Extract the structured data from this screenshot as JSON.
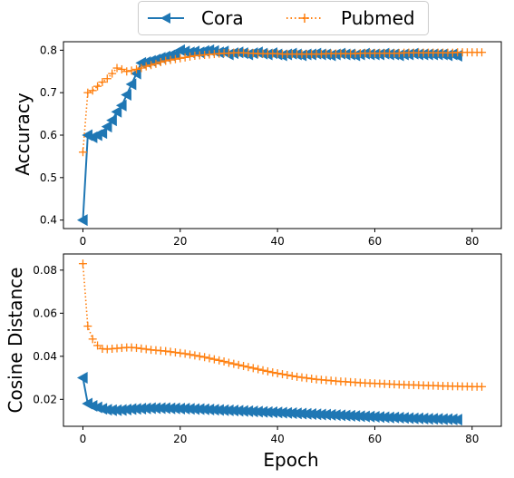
{
  "colors": {
    "cora": "#1f77b4",
    "pubmed": "#ff7f0e",
    "axis": "#000000",
    "legend_border": "#cccccc"
  },
  "legend": {
    "placement": "top-center",
    "items": [
      {
        "name": "Cora",
        "marker": "left-triangle",
        "line": "solid"
      },
      {
        "name": "Pubmed",
        "marker": "plus",
        "line": "dotted"
      }
    ]
  },
  "chart_data": [
    {
      "type": "line",
      "title": "",
      "xlabel": "",
      "ylabel": "Accuracy",
      "xlim": [
        -4,
        86
      ],
      "ylim": [
        0.38,
        0.82
      ],
      "xticks": [
        0,
        20,
        40,
        60,
        80
      ],
      "xtick_labels": [
        "0",
        "20",
        "40",
        "60",
        "80"
      ],
      "yticks": [
        0.4,
        0.5,
        0.6,
        0.7,
        0.8
      ],
      "ytick_labels": [
        "0.4",
        "0.5",
        "0.6",
        "0.7",
        "0.8"
      ],
      "grid": false,
      "series": [
        {
          "name": "Cora",
          "x": [
            0,
            1,
            2,
            3,
            4,
            5,
            6,
            7,
            8,
            9,
            10,
            11,
            12,
            13,
            14,
            15,
            16,
            17,
            18,
            19,
            20,
            21,
            22,
            23,
            24,
            25,
            26,
            27,
            28,
            29,
            30,
            31,
            32,
            33,
            34,
            35,
            36,
            37,
            38,
            39,
            40,
            41,
            42,
            43,
            44,
            45,
            46,
            47,
            48,
            49,
            50,
            51,
            52,
            53,
            54,
            55,
            56,
            57,
            58,
            59,
            60,
            61,
            62,
            63,
            64,
            65,
            66,
            67,
            68,
            69,
            70,
            71,
            72,
            73,
            74,
            75,
            76,
            77
          ],
          "y": [
            0.4,
            0.6,
            0.595,
            0.6,
            0.605,
            0.62,
            0.635,
            0.655,
            0.67,
            0.695,
            0.72,
            0.745,
            0.77,
            0.772,
            0.775,
            0.778,
            0.782,
            0.785,
            0.788,
            0.79,
            0.8,
            0.797,
            0.795,
            0.797,
            0.795,
            0.798,
            0.8,
            0.798,
            0.795,
            0.797,
            0.79,
            0.793,
            0.795,
            0.793,
            0.79,
            0.793,
            0.795,
            0.792,
            0.79,
            0.793,
            0.79,
            0.788,
            0.79,
            0.792,
            0.79,
            0.788,
            0.79,
            0.79,
            0.792,
            0.79,
            0.79,
            0.788,
            0.79,
            0.792,
            0.79,
            0.79,
            0.788,
            0.79,
            0.792,
            0.79,
            0.79,
            0.79,
            0.792,
            0.79,
            0.79,
            0.788,
            0.79,
            0.79,
            0.792,
            0.79,
            0.79,
            0.79,
            0.79,
            0.79,
            0.79,
            0.788,
            0.79,
            0.787
          ]
        },
        {
          "name": "Pubmed",
          "x": [
            0,
            1,
            2,
            3,
            4,
            5,
            6,
            7,
            8,
            9,
            10,
            11,
            12,
            13,
            14,
            15,
            16,
            17,
            18,
            19,
            20,
            21,
            22,
            23,
            24,
            25,
            26,
            27,
            28,
            29,
            30,
            31,
            32,
            33,
            34,
            35,
            36,
            37,
            38,
            39,
            40,
            41,
            42,
            43,
            44,
            45,
            46,
            47,
            48,
            49,
            50,
            51,
            52,
            53,
            54,
            55,
            56,
            57,
            58,
            59,
            60,
            61,
            62,
            63,
            64,
            65,
            66,
            67,
            68,
            69,
            70,
            71,
            72,
            73,
            74,
            75,
            76,
            77,
            78,
            79,
            80,
            81,
            82
          ],
          "y": [
            0.56,
            0.7,
            0.705,
            0.715,
            0.725,
            0.733,
            0.745,
            0.758,
            0.755,
            0.75,
            0.752,
            0.755,
            0.758,
            0.762,
            0.765,
            0.768,
            0.772,
            0.775,
            0.777,
            0.779,
            0.781,
            0.783,
            0.785,
            0.787,
            0.788,
            0.789,
            0.79,
            0.791,
            0.792,
            0.793,
            0.793,
            0.794,
            0.794,
            0.794,
            0.793,
            0.793,
            0.792,
            0.792,
            0.792,
            0.792,
            0.792,
            0.791,
            0.791,
            0.791,
            0.791,
            0.791,
            0.791,
            0.791,
            0.791,
            0.791,
            0.792,
            0.792,
            0.792,
            0.792,
            0.792,
            0.792,
            0.792,
            0.793,
            0.793,
            0.793,
            0.793,
            0.793,
            0.793,
            0.793,
            0.793,
            0.793,
            0.794,
            0.794,
            0.794,
            0.794,
            0.794,
            0.794,
            0.794,
            0.794,
            0.794,
            0.794,
            0.794,
            0.795,
            0.795,
            0.795,
            0.795,
            0.795,
            0.795
          ]
        }
      ]
    },
    {
      "type": "line",
      "title": "",
      "xlabel": "Epoch",
      "ylabel": "Cosine Distance",
      "xlim": [
        -4,
        86
      ],
      "ylim": [
        0.0075,
        0.0875
      ],
      "xticks": [
        0,
        20,
        40,
        60,
        80
      ],
      "xtick_labels": [
        "0",
        "20",
        "40",
        "60",
        "80"
      ],
      "yticks": [
        0.02,
        0.04,
        0.06,
        0.08
      ],
      "ytick_labels": [
        "0.02",
        "0.04",
        "0.06",
        "0.08"
      ],
      "grid": false,
      "series": [
        {
          "name": "Cora",
          "x": [
            0,
            1,
            2,
            3,
            4,
            5,
            6,
            7,
            8,
            9,
            10,
            11,
            12,
            13,
            14,
            15,
            16,
            17,
            18,
            19,
            20,
            21,
            22,
            23,
            24,
            25,
            26,
            27,
            28,
            29,
            30,
            31,
            32,
            33,
            34,
            35,
            36,
            37,
            38,
            39,
            40,
            41,
            42,
            43,
            44,
            45,
            46,
            47,
            48,
            49,
            50,
            51,
            52,
            53,
            54,
            55,
            56,
            57,
            58,
            59,
            60,
            61,
            62,
            63,
            64,
            65,
            66,
            67,
            68,
            69,
            70,
            71,
            72,
            73,
            74,
            75,
            76,
            77
          ],
          "y": [
            0.03,
            0.018,
            0.017,
            0.0163,
            0.0156,
            0.0152,
            0.015,
            0.015,
            0.0151,
            0.0153,
            0.0155,
            0.0156,
            0.0157,
            0.0158,
            0.0159,
            0.0159,
            0.0159,
            0.0159,
            0.0158,
            0.0158,
            0.0157,
            0.0157,
            0.0156,
            0.0155,
            0.0155,
            0.0154,
            0.0153,
            0.0152,
            0.0151,
            0.015,
            0.0149,
            0.0148,
            0.0147,
            0.0146,
            0.0145,
            0.0144,
            0.0143,
            0.0142,
            0.0141,
            0.014,
            0.0139,
            0.0138,
            0.0137,
            0.0136,
            0.0135,
            0.0134,
            0.0133,
            0.0132,
            0.0131,
            0.013,
            0.0129,
            0.0128,
            0.0127,
            0.0126,
            0.0125,
            0.0124,
            0.0123,
            0.0122,
            0.0121,
            0.012,
            0.0119,
            0.0118,
            0.0117,
            0.0116,
            0.0116,
            0.0115,
            0.0114,
            0.0113,
            0.0112,
            0.0112,
            0.0111,
            0.011,
            0.011,
            0.0109,
            0.0108,
            0.0108,
            0.0107,
            0.0106
          ]
        },
        {
          "name": "Pubmed",
          "x": [
            0,
            1,
            2,
            3,
            4,
            5,
            6,
            7,
            8,
            9,
            10,
            11,
            12,
            13,
            14,
            15,
            16,
            17,
            18,
            19,
            20,
            21,
            22,
            23,
            24,
            25,
            26,
            27,
            28,
            29,
            30,
            31,
            32,
            33,
            34,
            35,
            36,
            37,
            38,
            39,
            40,
            41,
            42,
            43,
            44,
            45,
            46,
            47,
            48,
            49,
            50,
            51,
            52,
            53,
            54,
            55,
            56,
            57,
            58,
            59,
            60,
            61,
            62,
            63,
            64,
            65,
            66,
            67,
            68,
            69,
            70,
            71,
            72,
            73,
            74,
            75,
            76,
            77,
            78,
            79,
            80,
            81,
            82
          ],
          "y": [
            0.083,
            0.054,
            0.048,
            0.045,
            0.0435,
            0.0433,
            0.0435,
            0.0437,
            0.0439,
            0.0441,
            0.0441,
            0.0439,
            0.0436,
            0.0433,
            0.043,
            0.0428,
            0.0426,
            0.0424,
            0.0421,
            0.0418,
            0.0415,
            0.0412,
            0.0408,
            0.0404,
            0.04,
            0.0396,
            0.0391,
            0.0386,
            0.0381,
            0.0376,
            0.037,
            0.0365,
            0.036,
            0.0355,
            0.035,
            0.0345,
            0.034,
            0.0335,
            0.033,
            0.0325,
            0.0321,
            0.0317,
            0.0313,
            0.0309,
            0.0305,
            0.0302,
            0.0299,
            0.0296,
            0.0293,
            0.0291,
            0.0289,
            0.0287,
            0.0285,
            0.0283,
            0.0282,
            0.028,
            0.0279,
            0.0277,
            0.0276,
            0.0275,
            0.0274,
            0.0273,
            0.0272,
            0.0271,
            0.027,
            0.0269,
            0.0268,
            0.0267,
            0.0267,
            0.0266,
            0.0265,
            0.0264,
            0.0264,
            0.0263,
            0.0262,
            0.0262,
            0.0261,
            0.0261,
            0.026,
            0.026,
            0.0259,
            0.0259,
            0.0259
          ]
        }
      ]
    }
  ]
}
